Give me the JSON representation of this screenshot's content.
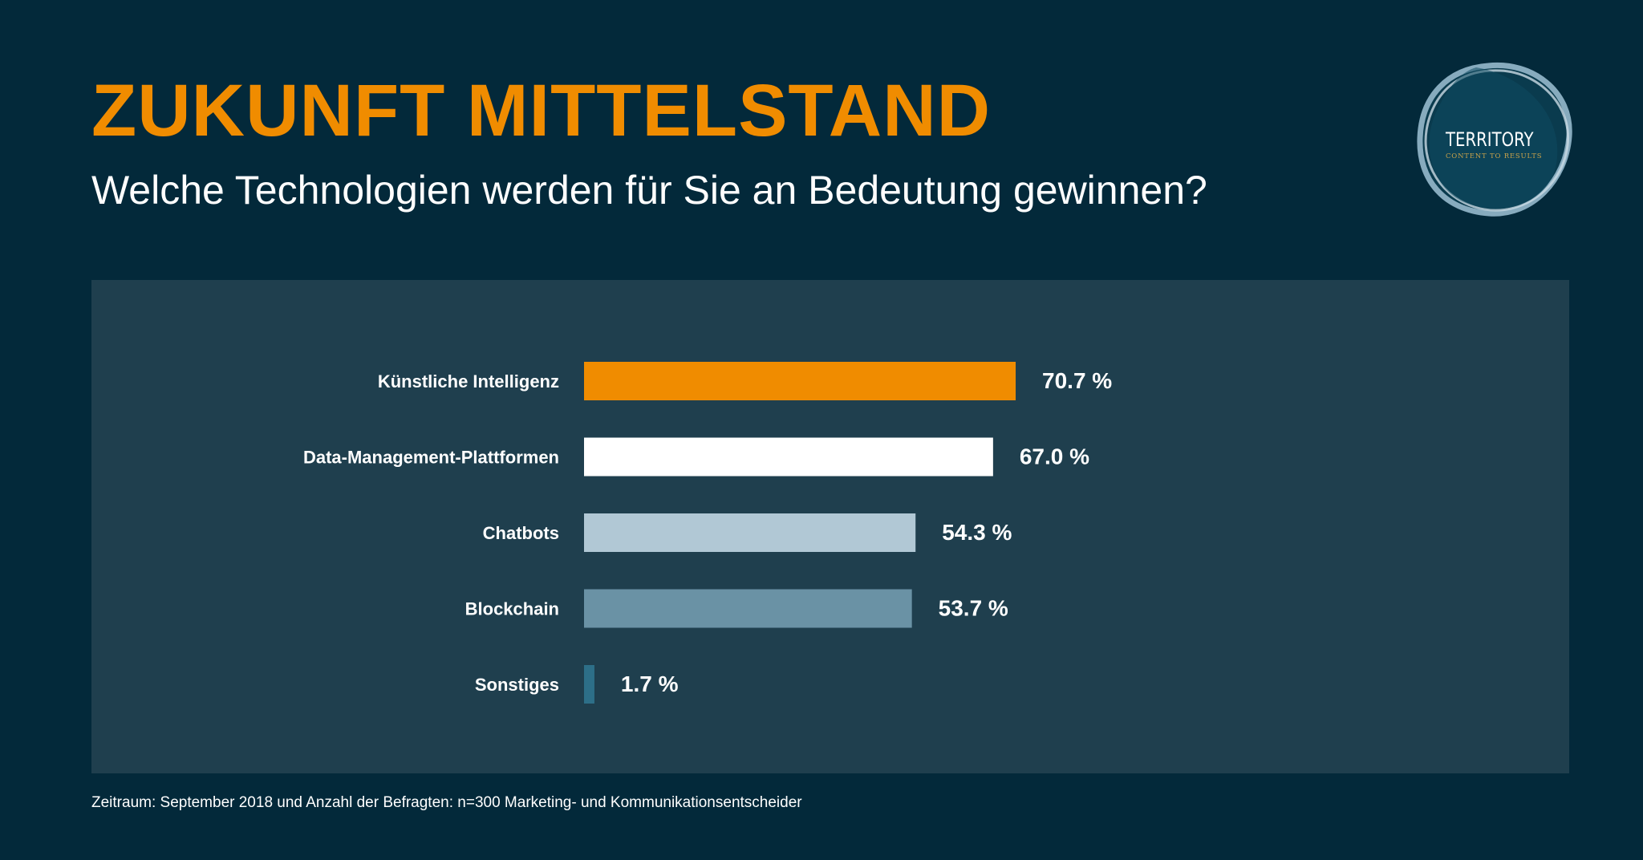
{
  "header": {
    "title": "ZUKUNFT MITTELSTAND",
    "subtitle": "Welche Technologien werden für Sie an Bedeutung gewinnen?"
  },
  "logo": {
    "brand": "TERRITORY",
    "tagline": "CONTENT TO RESULTS"
  },
  "chart_data": {
    "type": "bar",
    "orientation": "horizontal",
    "title": "Welche Technologien werden für Sie an Bedeutung gewinnen?",
    "categories": [
      "Künstliche Intelligenz",
      "Data-Management-Plattformen",
      "Chatbots",
      "Blockchain",
      "Sonstiges"
    ],
    "values": [
      70.7,
      67.0,
      54.3,
      53.7,
      1.7
    ],
    "value_labels": [
      "70.7 %",
      "67.0 %",
      "54.3 %",
      "53.7 %",
      "1.7 %"
    ],
    "colors": [
      "#f08c00",
      "#ffffff",
      "#b1c8d5",
      "#6a92a5",
      "#2d6f88"
    ],
    "unit": "%",
    "xlim": [
      0,
      100
    ],
    "grid": false,
    "legend": "none"
  },
  "footnote": "Zeitraum: September 2018 und Anzahl der Befragten: n=300 Marketing- und Kommunikationsentscheider",
  "colors": {
    "background": "#03293a",
    "panel": "#1f3f4e",
    "accent": "#f08c00",
    "text": "#ffffff"
  }
}
